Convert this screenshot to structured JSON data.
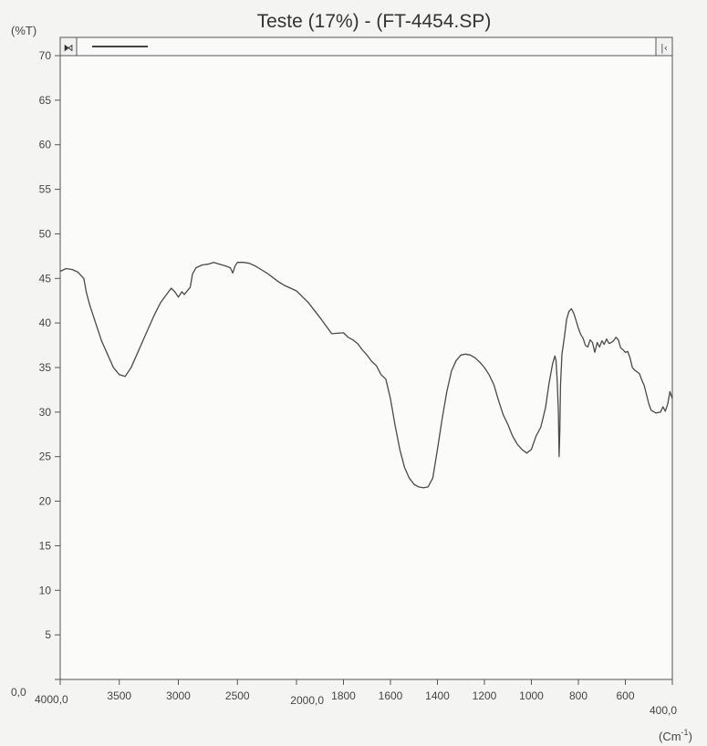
{
  "chart_data": {
    "type": "line",
    "title": "Teste (17%) - (FT-4454.SP)",
    "ylabel": "(%T)",
    "xlabel": "(Cm¹)",
    "x_unit_main": "(Cm",
    "x_unit_sup": "-1",
    "x_unit_close": ")",
    "xlim": [
      4000,
      400
    ],
    "ylim": [
      0,
      70
    ],
    "axis_break_at": 2000,
    "grid": false,
    "legend": "none",
    "x_ticks": [
      {
        "value": 4000,
        "label": "4000,0"
      },
      {
        "value": 3500,
        "label": "3500"
      },
      {
        "value": 3000,
        "label": "3000"
      },
      {
        "value": 2500,
        "label": "2500"
      },
      {
        "value": 2000,
        "label": "2000,0"
      },
      {
        "value": 1800,
        "label": "1800"
      },
      {
        "value": 1600,
        "label": "1600"
      },
      {
        "value": 1400,
        "label": "1400"
      },
      {
        "value": 1200,
        "label": "1200"
      },
      {
        "value": 1000,
        "label": "1000"
      },
      {
        "value": 800,
        "label": "800"
      },
      {
        "value": 600,
        "label": "600"
      },
      {
        "value": 400,
        "label": "400,0"
      }
    ],
    "y_ticks": [
      {
        "value": 0,
        "label": "0,0"
      },
      {
        "value": 5,
        "label": "5"
      },
      {
        "value": 10,
        "label": "10"
      },
      {
        "value": 15,
        "label": "15"
      },
      {
        "value": 20,
        "label": "20"
      },
      {
        "value": 25,
        "label": "25"
      },
      {
        "value": 30,
        "label": "30"
      },
      {
        "value": 35,
        "label": "35"
      },
      {
        "value": 40,
        "label": "40"
      },
      {
        "value": 45,
        "label": "45"
      },
      {
        "value": 50,
        "label": "50"
      },
      {
        "value": 55,
        "label": "55"
      },
      {
        "value": 60,
        "label": "60"
      },
      {
        "value": 65,
        "label": "65"
      },
      {
        "value": 70,
        "label": "70"
      }
    ],
    "series": [
      {
        "color": "#4a4a4a",
        "points": [
          [
            4000,
            45.8
          ],
          [
            3950,
            46.1
          ],
          [
            3900,
            46.0
          ],
          [
            3850,
            45.7
          ],
          [
            3800,
            45.0
          ],
          [
            3780,
            43.5
          ],
          [
            3750,
            42.0
          ],
          [
            3700,
            40.0
          ],
          [
            3650,
            38.0
          ],
          [
            3600,
            36.5
          ],
          [
            3550,
            35.0
          ],
          [
            3500,
            34.2
          ],
          [
            3450,
            34.0
          ],
          [
            3400,
            35.0
          ],
          [
            3350,
            36.5
          ],
          [
            3300,
            38.0
          ],
          [
            3250,
            39.5
          ],
          [
            3200,
            41.0
          ],
          [
            3150,
            42.3
          ],
          [
            3100,
            43.2
          ],
          [
            3060,
            43.9
          ],
          [
            3030,
            43.5
          ],
          [
            3000,
            42.9
          ],
          [
            2970,
            43.5
          ],
          [
            2950,
            43.2
          ],
          [
            2900,
            44.0
          ],
          [
            2880,
            45.5
          ],
          [
            2850,
            46.2
          ],
          [
            2800,
            46.5
          ],
          [
            2750,
            46.6
          ],
          [
            2700,
            46.8
          ],
          [
            2650,
            46.6
          ],
          [
            2600,
            46.4
          ],
          [
            2560,
            46.2
          ],
          [
            2540,
            45.6
          ],
          [
            2520,
            46.4
          ],
          [
            2500,
            46.8
          ],
          [
            2450,
            46.8
          ],
          [
            2400,
            46.7
          ],
          [
            2350,
            46.4
          ],
          [
            2300,
            46.0
          ],
          [
            2250,
            45.6
          ],
          [
            2200,
            45.1
          ],
          [
            2150,
            44.6
          ],
          [
            2100,
            44.2
          ],
          [
            2050,
            43.9
          ],
          [
            2000,
            43.6
          ],
          [
            1950,
            42.3
          ],
          [
            1900,
            40.6
          ],
          [
            1850,
            38.8
          ],
          [
            1800,
            38.9
          ],
          [
            1780,
            38.4
          ],
          [
            1760,
            38.1
          ],
          [
            1740,
            37.7
          ],
          [
            1720,
            37.0
          ],
          [
            1700,
            36.4
          ],
          [
            1680,
            35.7
          ],
          [
            1660,
            35.2
          ],
          [
            1640,
            34.2
          ],
          [
            1620,
            33.7
          ],
          [
            1600,
            31.5
          ],
          [
            1580,
            28.5
          ],
          [
            1560,
            25.8
          ],
          [
            1540,
            23.8
          ],
          [
            1520,
            22.6
          ],
          [
            1500,
            21.9
          ],
          [
            1480,
            21.6
          ],
          [
            1460,
            21.5
          ],
          [
            1440,
            21.6
          ],
          [
            1420,
            22.6
          ],
          [
            1400,
            25.8
          ],
          [
            1380,
            29.2
          ],
          [
            1360,
            32.3
          ],
          [
            1340,
            34.6
          ],
          [
            1320,
            35.8
          ],
          [
            1300,
            36.4
          ],
          [
            1280,
            36.5
          ],
          [
            1260,
            36.4
          ],
          [
            1240,
            36.1
          ],
          [
            1220,
            35.6
          ],
          [
            1200,
            35.0
          ],
          [
            1180,
            34.2
          ],
          [
            1160,
            33.1
          ],
          [
            1140,
            31.3
          ],
          [
            1120,
            29.7
          ],
          [
            1100,
            28.6
          ],
          [
            1080,
            27.3
          ],
          [
            1060,
            26.4
          ],
          [
            1040,
            25.8
          ],
          [
            1020,
            25.4
          ],
          [
            1000,
            25.8
          ],
          [
            980,
            27.3
          ],
          [
            960,
            28.3
          ],
          [
            940,
            30.5
          ],
          [
            925,
            33.2
          ],
          [
            910,
            35.4
          ],
          [
            900,
            36.3
          ],
          [
            895,
            35.8
          ],
          [
            890,
            33.5
          ],
          [
            885,
            30.0
          ],
          [
            882,
            25.0
          ],
          [
            879,
            28.0
          ],
          [
            876,
            33.0
          ],
          [
            870,
            36.5
          ],
          [
            860,
            38.3
          ],
          [
            850,
            40.4
          ],
          [
            840,
            41.3
          ],
          [
            830,
            41.6
          ],
          [
            820,
            41.1
          ],
          [
            810,
            40.3
          ],
          [
            800,
            39.4
          ],
          [
            790,
            38.7
          ],
          [
            780,
            38.3
          ],
          [
            770,
            37.5
          ],
          [
            760,
            37.3
          ],
          [
            750,
            38.1
          ],
          [
            740,
            37.8
          ],
          [
            730,
            36.7
          ],
          [
            720,
            37.8
          ],
          [
            710,
            37.3
          ],
          [
            700,
            38.0
          ],
          [
            690,
            37.6
          ],
          [
            680,
            38.2
          ],
          [
            670,
            37.7
          ],
          [
            660,
            37.8
          ],
          [
            650,
            38.0
          ],
          [
            640,
            38.4
          ],
          [
            630,
            38.1
          ],
          [
            620,
            37.2
          ],
          [
            610,
            37.0
          ],
          [
            600,
            36.7
          ],
          [
            590,
            36.8
          ],
          [
            580,
            36.1
          ],
          [
            570,
            35.0
          ],
          [
            560,
            34.7
          ],
          [
            540,
            34.3
          ],
          [
            530,
            33.6
          ],
          [
            520,
            33.0
          ],
          [
            500,
            30.9
          ],
          [
            490,
            30.2
          ],
          [
            470,
            29.9
          ],
          [
            450,
            30.0
          ],
          [
            440,
            30.6
          ],
          [
            430,
            30.1
          ],
          [
            420,
            30.9
          ],
          [
            410,
            32.3
          ],
          [
            400,
            31.5
          ]
        ]
      }
    ],
    "scrollbar": {
      "left_button": "⧑",
      "right_button": "|‹"
    }
  }
}
